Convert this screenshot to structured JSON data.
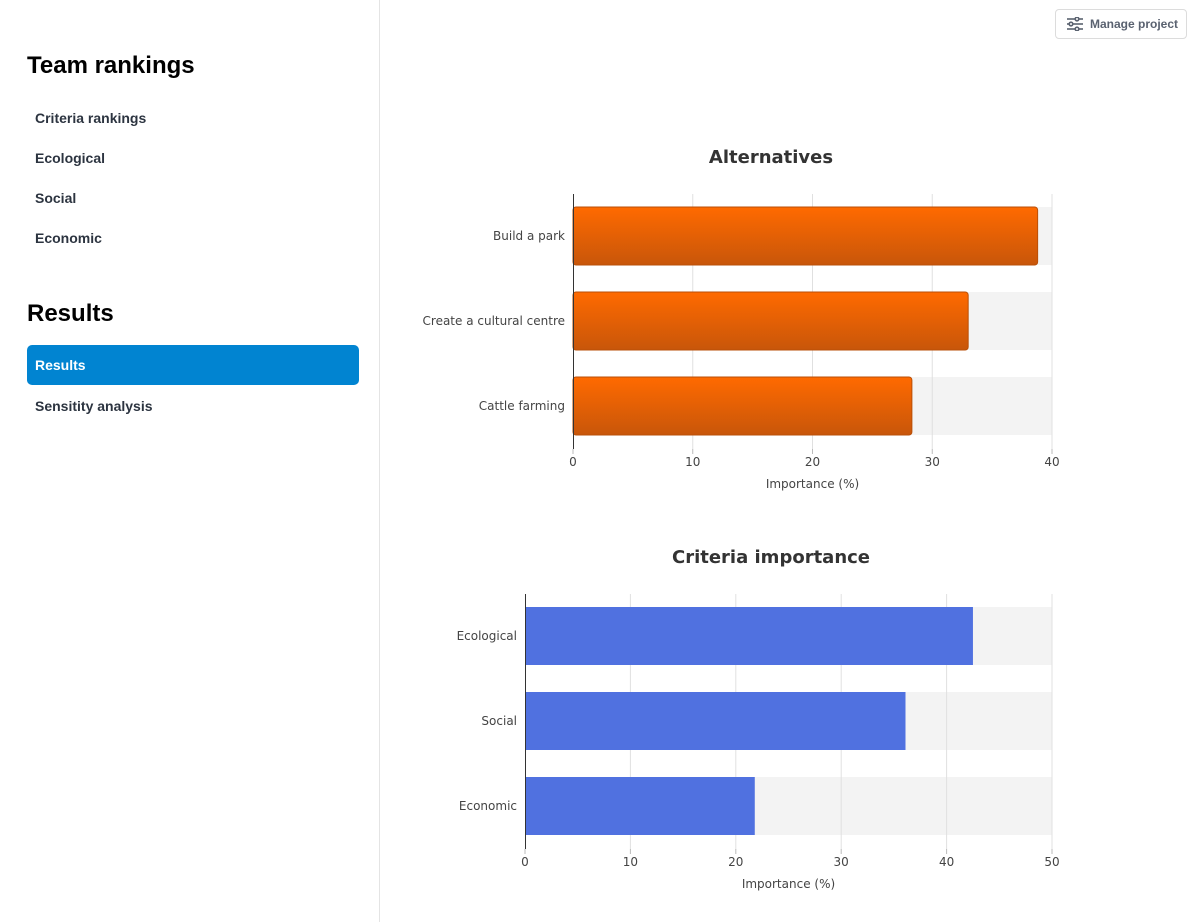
{
  "sidebar": {
    "team_title": "Team rankings",
    "team_items": [
      {
        "label": "Criteria rankings"
      },
      {
        "label": "Ecological"
      },
      {
        "label": "Social"
      },
      {
        "label": "Economic"
      }
    ],
    "results_title": "Results",
    "results_items": [
      {
        "label": "Results",
        "active": true
      },
      {
        "label": "Sensitity analysis",
        "active": false
      }
    ]
  },
  "toolbar": {
    "manage_label": "Manage project",
    "manage_icon": "sliders-icon"
  },
  "colors": {
    "accent": "#0184d1",
    "alternatives_bar_top": "#ff6a00",
    "alternatives_bar_bottom": "#c8560a",
    "criteria_bar": "#5071e0",
    "bar_track": "#f3f3f3"
  },
  "chart_data": [
    {
      "type": "bar",
      "orientation": "horizontal",
      "title": "Alternatives",
      "categories": [
        "Build a park",
        "Create a cultural centre",
        "Cattle farming"
      ],
      "values": [
        38.8,
        33.0,
        28.3
      ],
      "xlabel": "Importance (%)",
      "ylabel": "",
      "xlim": [
        0,
        40
      ],
      "xticks": [
        0,
        10,
        20,
        30,
        40
      ],
      "grid": true
    },
    {
      "type": "bar",
      "orientation": "horizontal",
      "title": "Criteria importance",
      "categories": [
        "Ecological",
        "Social",
        "Economic"
      ],
      "values": [
        42.5,
        36.1,
        21.8
      ],
      "xlabel": "Importance (%)",
      "ylabel": "",
      "xlim": [
        0,
        50
      ],
      "xticks": [
        0,
        10,
        20,
        30,
        40,
        50
      ],
      "grid": true
    }
  ]
}
